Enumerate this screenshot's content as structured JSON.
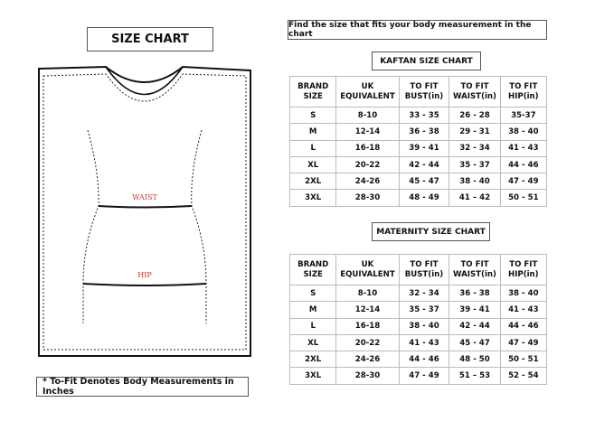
{
  "title": "SIZE CHART",
  "instruction": "Find the size that fits your body measurement in the chart",
  "footnote": "* To-Fit Denotes Body Measurements in Inches",
  "diagram": {
    "waist_label": "WAIST",
    "hip_label": "HIP",
    "label_color": "#c0392b"
  },
  "headers": [
    [
      "BRAND",
      "SIZE"
    ],
    [
      "UK",
      "EQUIVALENT"
    ],
    [
      "TO FIT",
      "BUST(in)"
    ],
    [
      "TO FIT",
      "WAIST(in)"
    ],
    [
      "TO FIT",
      "HIP(in)"
    ]
  ],
  "kaftan": {
    "title": "KAFTAN SIZE CHART",
    "rows": [
      [
        "S",
        "8-10",
        "33 - 35",
        "26 - 28",
        "35-37"
      ],
      [
        "M",
        "12-14",
        "36 - 38",
        "29 - 31",
        "38 - 40"
      ],
      [
        "L",
        "16-18",
        "39 - 41",
        "32 - 34",
        "41 - 43"
      ],
      [
        "XL",
        "20-22",
        "42 - 44",
        "35 - 37",
        "44 - 46"
      ],
      [
        "2XL",
        "24-26",
        "45 - 47",
        "38 - 40",
        "47 - 49"
      ],
      [
        "3XL",
        "28-30",
        "48 - 49",
        "41 – 42",
        "50 - 51"
      ]
    ]
  },
  "maternity": {
    "title": "MATERNITY SIZE CHART",
    "rows": [
      [
        "S",
        "8-10",
        "32 - 34",
        "36 - 38",
        "38 - 40"
      ],
      [
        "M",
        "12-14",
        "35 - 37",
        "39 - 41",
        "41 - 43"
      ],
      [
        "L",
        "16-18",
        "38 - 40",
        "42 - 44",
        "44 - 46"
      ],
      [
        "XL",
        "20-22",
        "41 - 43",
        "45 - 47",
        "47 - 49"
      ],
      [
        "2XL",
        "24-26",
        "44 - 46",
        "48 - 50",
        "50 - 51"
      ],
      [
        "3XL",
        "28-30",
        "47 - 49",
        "51 – 53",
        "52 - 54"
      ]
    ]
  }
}
